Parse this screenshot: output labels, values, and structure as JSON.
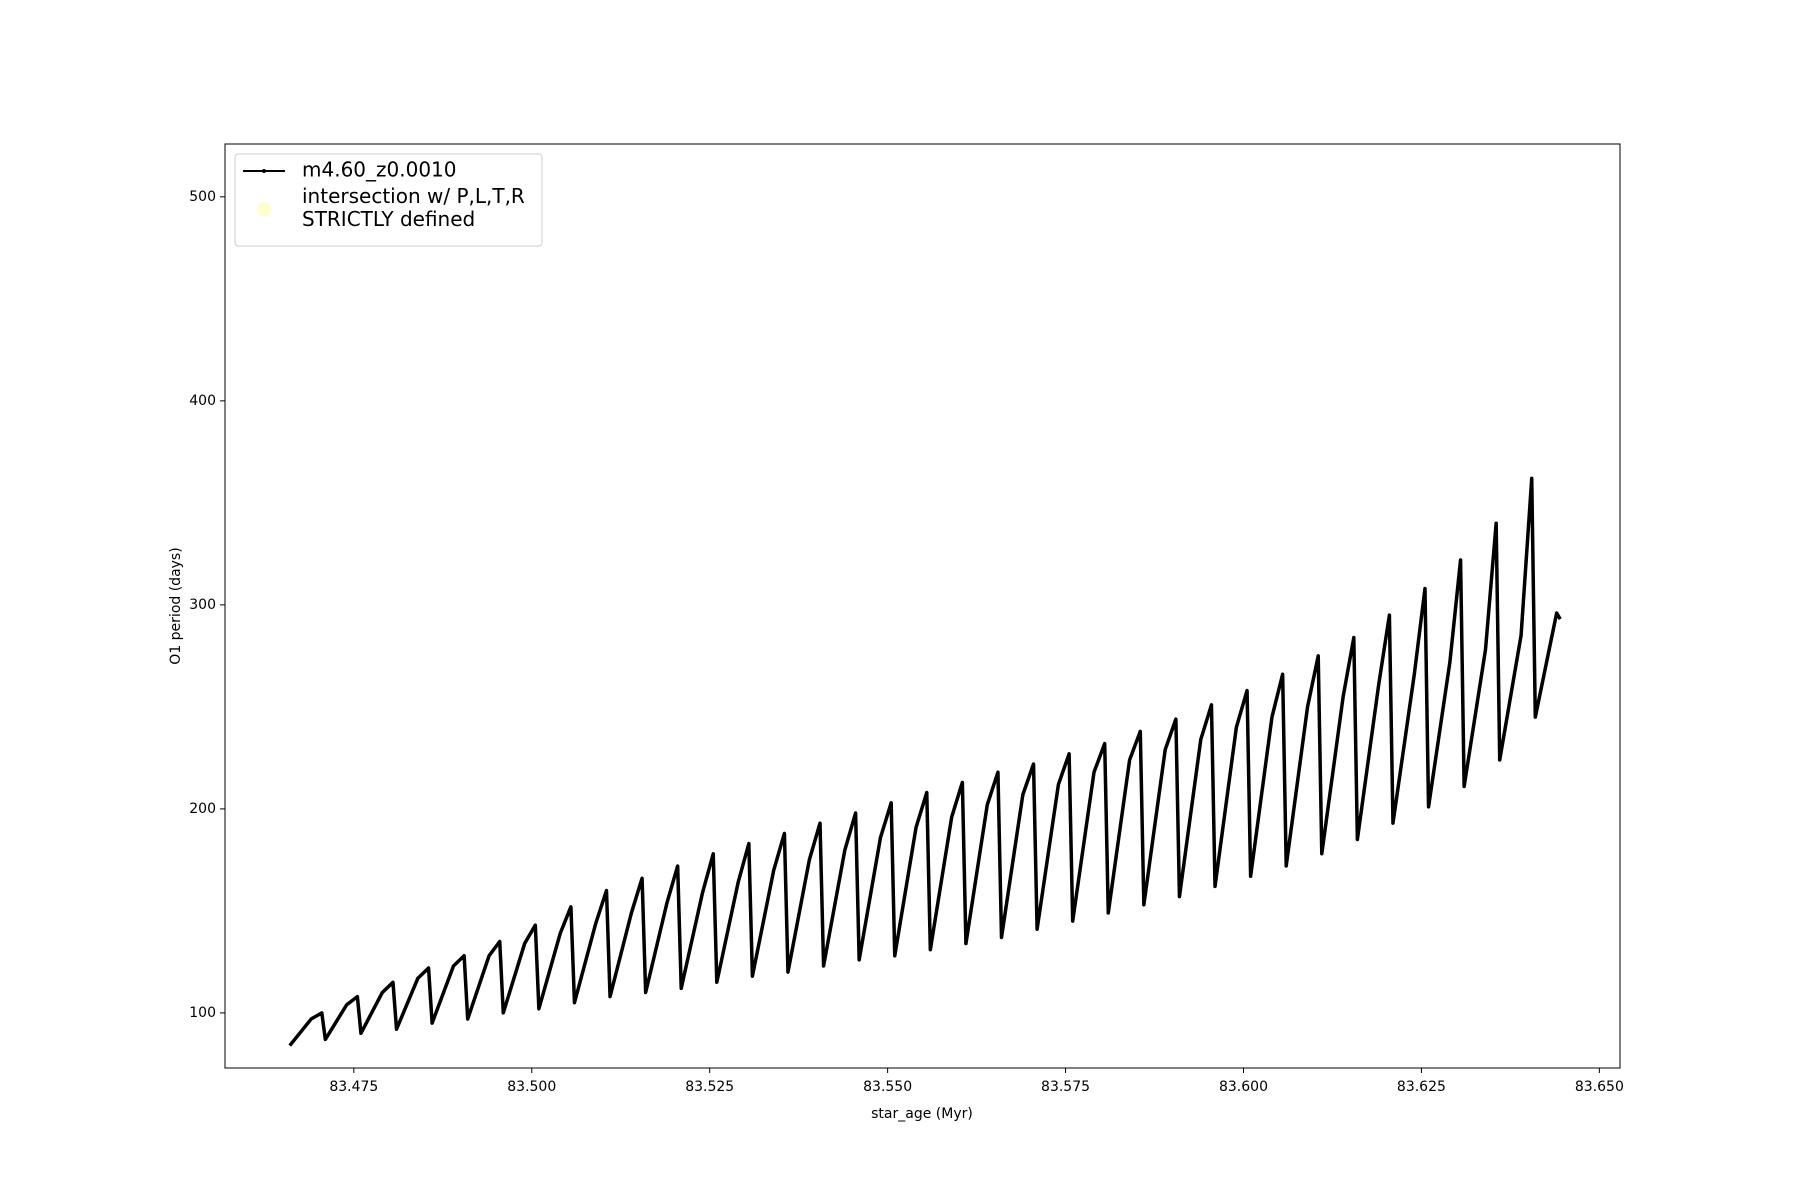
{
  "chart_data": {
    "type": "line",
    "xlabel": "star_age (Myr)",
    "ylabel": "O1 period (days)",
    "xlim": [
      83.4569,
      83.6529
    ],
    "ylim": [
      73.0,
      525.9
    ],
    "xticks": [
      83.475,
      {
        "value": 83.5,
        "label": "83.500"
      },
      83.525,
      {
        "value": 83.55,
        "label": "83.550"
      },
      83.575,
      {
        "value": 83.6,
        "label": "83.600"
      },
      83.625,
      {
        "value": 83.65,
        "label": "83.650"
      }
    ],
    "yticks": [
      100,
      200,
      300,
      400,
      500
    ],
    "grid": false,
    "legend": "upper left",
    "series": [
      {
        "name": "m4.60_z0.0010",
        "color": "#000000",
        "x": [
          83.466,
          83.469,
          83.4705,
          83.471,
          83.474,
          83.4755,
          83.476,
          83.479,
          83.4805,
          83.481,
          83.484,
          83.4855,
          83.486,
          83.489,
          83.4905,
          83.491,
          83.494,
          83.4955,
          83.496,
          83.499,
          83.5005,
          83.501,
          83.504,
          83.5055,
          83.506,
          83.509,
          83.5105,
          83.511,
          83.514,
          83.5155,
          83.516,
          83.519,
          83.5205,
          83.521,
          83.524,
          83.5255,
          83.526,
          83.529,
          83.5305,
          83.531,
          83.534,
          83.5355,
          83.536,
          83.539,
          83.5405,
          83.541,
          83.544,
          83.5455,
          83.546,
          83.549,
          83.5505,
          83.551,
          83.554,
          83.5555,
          83.556,
          83.559,
          83.5605,
          83.561,
          83.564,
          83.5655,
          83.566,
          83.569,
          83.5705,
          83.571,
          83.574,
          83.5755,
          83.576,
          83.579,
          83.5805,
          83.581,
          83.584,
          83.5855,
          83.586,
          83.589,
          83.5905,
          83.591,
          83.594,
          83.5955,
          83.596,
          83.599,
          83.6005,
          83.601,
          83.604,
          83.6055,
          83.606,
          83.609,
          83.6105,
          83.611,
          83.614,
          83.6155,
          83.616,
          83.619,
          83.6205,
          83.621,
          83.624,
          83.6255,
          83.626,
          83.629,
          83.6305,
          83.631,
          83.634,
          83.6355,
          83.636,
          83.639,
          83.6405,
          83.641,
          83.644,
          83.6445
        ],
        "values": [
          84,
          97,
          100,
          87,
          104,
          108,
          90,
          110,
          115,
          92,
          117,
          122,
          95,
          123,
          128,
          97,
          128,
          135,
          100,
          134,
          143,
          102,
          139,
          152,
          105,
          144,
          160,
          108,
          149,
          166,
          110,
          154,
          172,
          112,
          159,
          178,
          115,
          164,
          183,
          118,
          170,
          188,
          120,
          175,
          193,
          123,
          180,
          198,
          126,
          186,
          203,
          128,
          191,
          208,
          131,
          196,
          213,
          134,
          202,
          218,
          137,
          207,
          222,
          141,
          212,
          227,
          145,
          218,
          232,
          149,
          224,
          238,
          153,
          229,
          244,
          157,
          234,
          251,
          162,
          240,
          258,
          167,
          245,
          266,
          172,
          250,
          275,
          178,
          255,
          284,
          185,
          261,
          295,
          193,
          266,
          308,
          201,
          272,
          322,
          211,
          278,
          340,
          224,
          285,
          362,
          245,
          296,
          293
        ]
      },
      {
        "name": "intersection w/ P,L,T,R\nSTRICTLY defined",
        "color": "#ffffcc",
        "x": [],
        "values": []
      }
    ]
  }
}
